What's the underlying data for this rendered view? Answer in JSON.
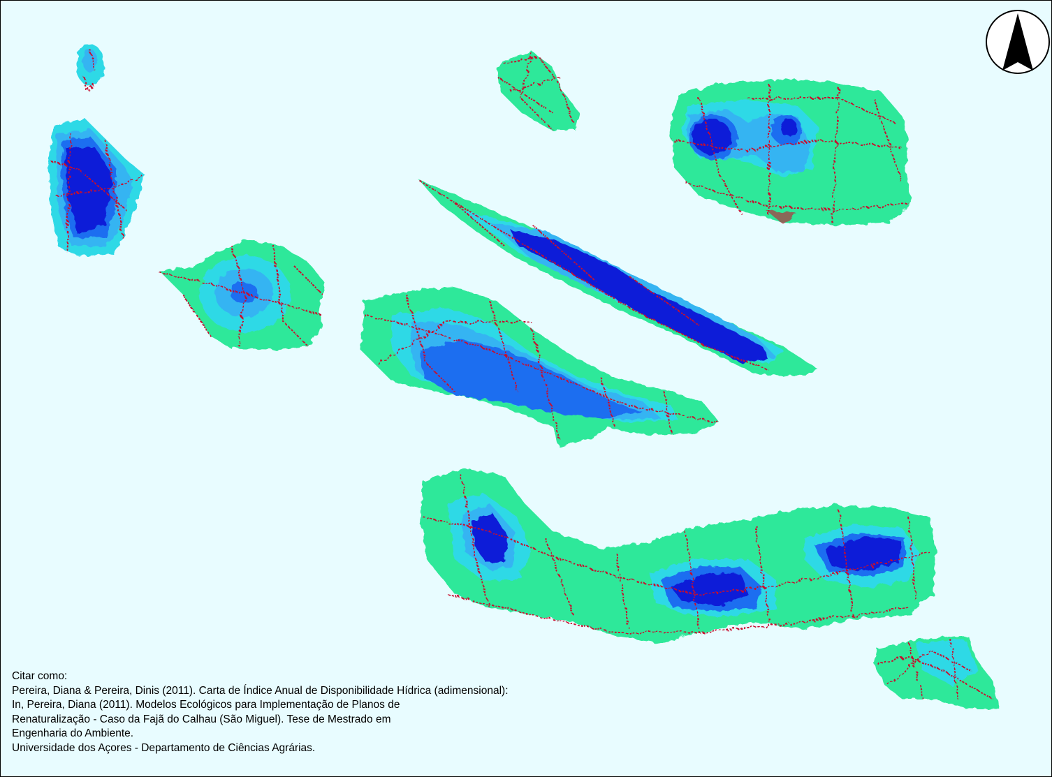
{
  "citation": {
    "lines": [
      "Citar como:",
      "Pereira, Diana & Pereira, Dinis (2011). Carta de Índice Anual de Disponibilidade Hídrica (adimensional):",
      "In, Pereira, Diana (2011). Modelos Ecológicos para Implementação de Planos de",
      "Renaturalização - Caso da Fajã do Calhau (São Miguel). Tese de Mestrado em",
      "Engenharia do Ambiente.",
      "Universidade dos Açores - Departamento de Ciências Agrárias."
    ]
  },
  "map": {
    "north_arrow_icon": "north-arrow-icon",
    "colors": {
      "background": "#e8fcff",
      "green": "#2ee89a",
      "cyan": "#2fd9e6",
      "light_blue": "#36b4f2",
      "blue": "#1f6ef0",
      "dark_blue": "#0c1ed8",
      "roads": "#c8102e"
    }
  }
}
